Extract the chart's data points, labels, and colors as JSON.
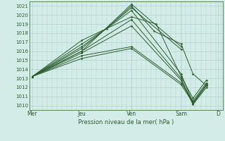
{
  "title": "",
  "xlabel": "Pression niveau de la mer( hPa )",
  "ylim": [
    1009.5,
    1021.5
  ],
  "yticks": [
    1010,
    1011,
    1012,
    1013,
    1014,
    1015,
    1016,
    1017,
    1018,
    1019,
    1020,
    1021
  ],
  "background_color": "#d4ece8",
  "grid_color": "#aacfcb",
  "line_color": "#2d5e2d",
  "x_day_labels": [
    "Mer",
    "Jeu",
    "Ven",
    "Sam",
    "D"
  ],
  "x_day_positions": [
    0,
    0.333,
    0.667,
    1.0,
    1.25
  ],
  "xlim": [
    -0.02,
    1.28
  ],
  "lines": [
    {
      "x": [
        0,
        0.333,
        0.667,
        1.0
      ],
      "y": [
        1013.2,
        1016.0,
        1021.2,
        1016.5
      ]
    },
    {
      "x": [
        0,
        0.333,
        0.667,
        1.0
      ],
      "y": [
        1013.2,
        1016.3,
        1020.8,
        1016.2
      ]
    },
    {
      "x": [
        0,
        0.333,
        0.667,
        1.0,
        1.08,
        1.17
      ],
      "y": [
        1013.2,
        1016.5,
        1020.5,
        1013.5,
        1010.3,
        1012.3
      ]
    },
    {
      "x": [
        0,
        0.333,
        0.667,
        1.0,
        1.08,
        1.17
      ],
      "y": [
        1013.2,
        1016.0,
        1019.5,
        1013.0,
        1010.2,
        1012.2
      ]
    },
    {
      "x": [
        0,
        0.333,
        0.667,
        1.0,
        1.08,
        1.17
      ],
      "y": [
        1013.2,
        1015.8,
        1018.8,
        1012.8,
        1010.1,
        1012.0
      ]
    },
    {
      "x": [
        0,
        0.333,
        0.667,
        1.0,
        1.08,
        1.17
      ],
      "y": [
        1013.2,
        1015.5,
        1016.5,
        1012.5,
        1010.5,
        1012.5
      ]
    },
    {
      "x": [
        0,
        0.333,
        0.667,
        1.0,
        1.08,
        1.17
      ],
      "y": [
        1013.2,
        1015.2,
        1016.3,
        1012.3,
        1010.3,
        1012.3
      ]
    },
    {
      "x": [
        0,
        0.333,
        0.667,
        0.833,
        1.0,
        1.08,
        1.17
      ],
      "y": [
        1013.2,
        1017.2,
        1019.8,
        1019.0,
        1013.2,
        1010.8,
        1012.8
      ]
    },
    {
      "x": [
        0,
        0.333,
        0.5,
        0.667,
        0.82,
        1.0,
        1.08,
        1.17
      ],
      "y": [
        1013.2,
        1016.8,
        1018.5,
        1021.0,
        1018.2,
        1016.8,
        1013.5,
        1012.2
      ]
    }
  ]
}
